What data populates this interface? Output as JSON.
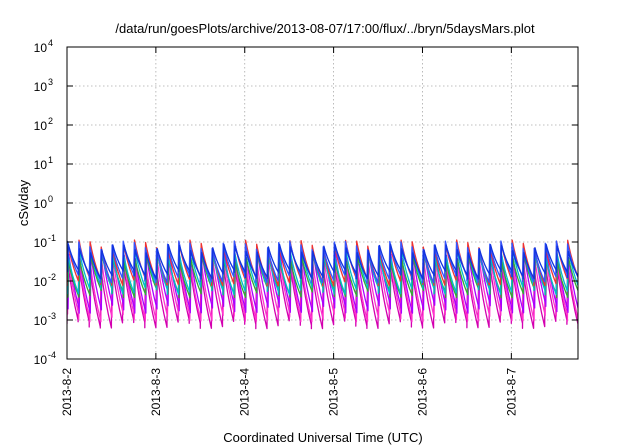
{
  "chart_data": {
    "type": "line",
    "title": "/data/run/goesPlots/archive/2013-08-07/17:00/flux/../bryn/5daysMars.plot",
    "xlabel": "Coordinated Universal Time (UTC)",
    "ylabel": "cSv/day",
    "y_scale": "log",
    "ylim": [
      0.0001,
      10000
    ],
    "y_ticks": [
      {
        "base": "10",
        "exp": "4",
        "value": 10000
      },
      {
        "base": "10",
        "exp": "3",
        "value": 1000
      },
      {
        "base": "10",
        "exp": "2",
        "value": 100
      },
      {
        "base": "10",
        "exp": "1",
        "value": 10
      },
      {
        "base": "10",
        "exp": "0",
        "value": 1
      },
      {
        "base": "10",
        "exp": "-1",
        "value": 0.1
      },
      {
        "base": "10",
        "exp": "-2",
        "value": 0.01
      },
      {
        "base": "10",
        "exp": "-3",
        "value": 0.001
      },
      {
        "base": "10",
        "exp": "-4",
        "value": 0.0001
      }
    ],
    "xlim": [
      "2013-08-02T00:00",
      "2013-08-07T18:00"
    ],
    "x_ticks": [
      {
        "label": "2013-8-2",
        "value": "2013-08-02T00:00"
      },
      {
        "label": "2013-8-3",
        "value": "2013-08-03T00:00"
      },
      {
        "label": "2013-8-4",
        "value": "2013-08-04T00:00"
      },
      {
        "label": "2013-8-5",
        "value": "2013-08-05T00:00"
      },
      {
        "label": "2013-8-6",
        "value": "2013-08-06T00:00"
      },
      {
        "label": "2013-8-7",
        "value": "2013-08-07T00:00"
      }
    ],
    "grid": true,
    "sawtooth_period_hours": 3,
    "series": [
      {
        "color": "#d400b0",
        "peak": 0.025,
        "trough": 0.0008,
        "phase_hours": 0.0
      },
      {
        "color": "#ff33cc",
        "peak": 0.035,
        "trough": 0.0012,
        "phase_hours": 0.15
      },
      {
        "color": "#aa00ff",
        "peak": 0.05,
        "trough": 0.002,
        "phase_hours": 0.3
      },
      {
        "color": "#33aa33",
        "peak": 0.04,
        "trough": 0.005,
        "phase_hours": 0.25
      },
      {
        "color": "#00bbcc",
        "peak": 0.06,
        "trough": 0.006,
        "phase_hours": 0.1
      },
      {
        "color": "#ee3333",
        "peak": 0.09,
        "trough": 0.01,
        "phase_hours": 0.05
      },
      {
        "color": "#3355ff",
        "peak": 0.085,
        "trough": 0.012,
        "phase_hours": 0.0
      },
      {
        "color": "#1133dd",
        "peak": 0.07,
        "trough": 0.015,
        "phase_hours": 0.2
      }
    ]
  }
}
